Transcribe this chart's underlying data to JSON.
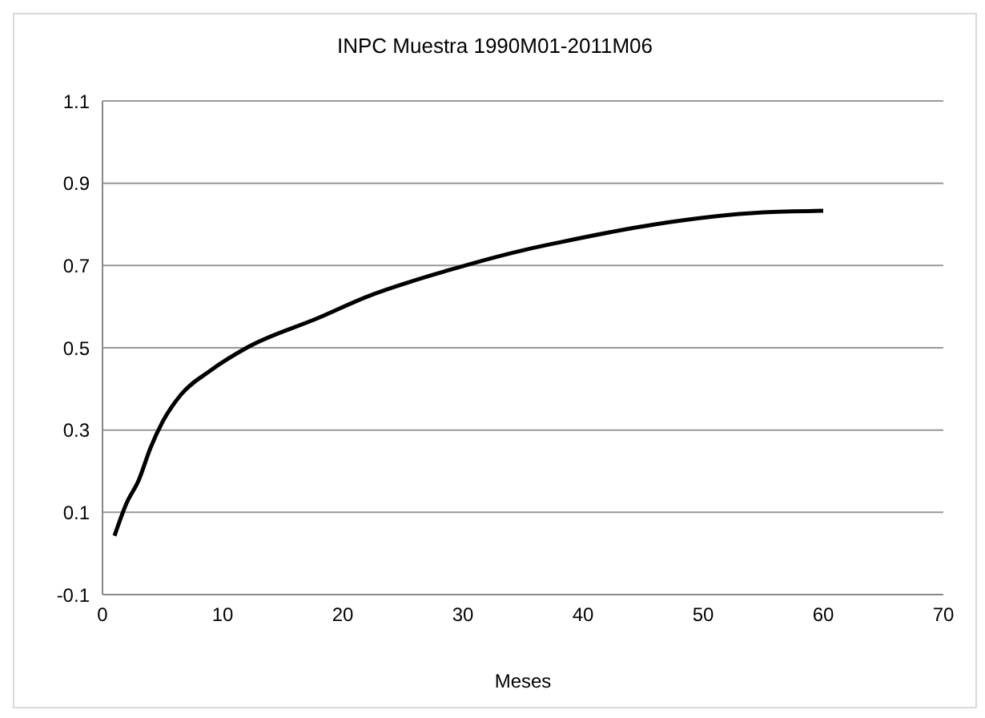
{
  "chart_data": {
    "type": "line",
    "title": "INPC Muestra 1990M01-2011M06",
    "xlabel": "Meses",
    "series": [
      {
        "color": "#000000",
        "x": [
          1,
          2,
          3,
          4,
          5,
          6.5,
          9,
          12,
          18,
          22,
          29,
          35,
          38,
          46,
          55,
          60
        ],
        "values": [
          0.043,
          0.122,
          0.177,
          0.257,
          0.32,
          0.385,
          0.445,
          0.5,
          0.573,
          0.624,
          0.69,
          0.737,
          0.756,
          0.8,
          0.829,
          0.833
        ]
      }
    ],
    "xlim": [
      0,
      70
    ],
    "xticks": [
      0,
      10,
      20,
      30,
      40,
      50,
      60,
      70
    ],
    "ylim": [
      -0.1,
      1.1
    ],
    "yticks": [
      -0.1,
      0.1,
      0.3,
      0.5,
      0.7,
      0.9,
      1.1
    ],
    "grid": "y",
    "marker": "none",
    "line_style": "solid",
    "legend": false
  }
}
